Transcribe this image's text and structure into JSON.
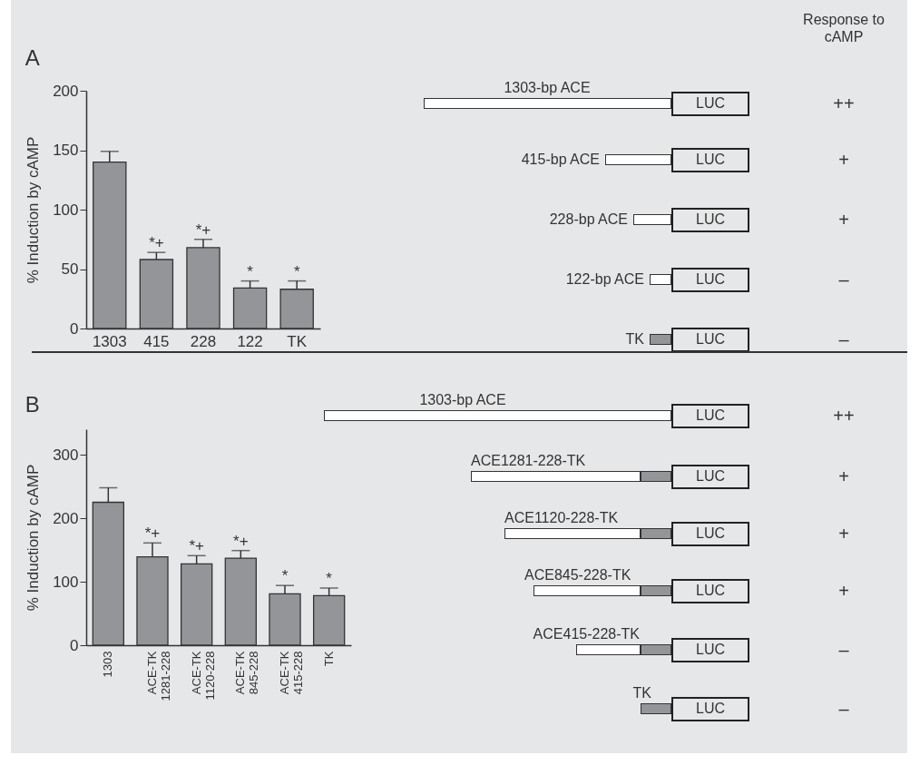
{
  "chart_data": [
    {
      "type": "bar",
      "title": "A",
      "ylabel": "% Induction by cAMP",
      "categories": [
        "1303",
        "415",
        "228",
        "122",
        "TK"
      ],
      "values": [
        140,
        58,
        68,
        34,
        33
      ],
      "errors": [
        9,
        6,
        7,
        6,
        7
      ],
      "color": "#939598",
      "ylim": [
        0,
        200
      ],
      "yticks": [
        0,
        50,
        100,
        150,
        200
      ],
      "annotations": [
        {
          "text": "*+",
          "x": "415",
          "y": 64
        },
        {
          "text": "*+",
          "x": "228",
          "y": 75
        },
        {
          "text": "*",
          "x": "122",
          "y": 40
        },
        {
          "text": "*",
          "x": "TK",
          "y": 40
        }
      ]
    },
    {
      "type": "other",
      "title": "Response to cAMP",
      "categories": [
        "1303-bp ACE",
        "415-bp ACE",
        "228-bp ACE",
        "122-bp ACE",
        "TK"
      ],
      "y2_categories": [
        "++",
        "+",
        "+",
        "–",
        "–"
      ],
      "annotations": [
        "LUC"
      ]
    },
    {
      "type": "bar",
      "title": "B",
      "ylabel": "% Induction by cAMP",
      "categories": [
        "1303",
        "ACE-TK\n1281-228",
        "ACE-TK\n1120-228",
        "ACE-TK\n845-228",
        "ACE-TK\n415-228",
        "TK"
      ],
      "values": [
        225,
        139,
        128,
        137,
        81,
        78
      ],
      "errors": [
        23,
        22,
        13,
        12,
        13,
        12
      ],
      "color": "#939598",
      "ylim": [
        0,
        340
      ],
      "yticks": [
        0,
        100,
        200,
        300
      ],
      "annotations": [
        {
          "text": "*+",
          "x": "ACE-TK\n1281-228",
          "y": 161
        },
        {
          "text": "*+",
          "x": "ACE-TK\n1120-228",
          "y": 141
        },
        {
          "text": "*+",
          "x": "ACE-TK\n845-228",
          "y": 149
        },
        {
          "text": "*",
          "x": "ACE-TK\n415-228",
          "y": 94
        },
        {
          "text": "*",
          "x": "TK",
          "y": 90
        }
      ]
    },
    {
      "type": "other",
      "categories": [
        "1303-bp ACE",
        "ACE1281-228-TK",
        "ACE1120-228-TK",
        "ACE845-228-TK",
        "ACE415-228-TK",
        "TK"
      ],
      "y2_categories": [
        "++",
        "+",
        "+",
        "+",
        "–",
        "–"
      ],
      "annotations": [
        "LUC"
      ]
    }
  ]
}
